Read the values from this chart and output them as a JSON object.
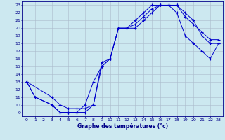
{
  "xlabel": "Graphe des températures (°c)",
  "background_color": "#cce8f0",
  "line_color": "#0000cc",
  "grid_color": "#aabbcc",
  "xlim": [
    -0.5,
    23.5
  ],
  "ylim": [
    8.5,
    23.5
  ],
  "xticks": [
    0,
    1,
    2,
    3,
    4,
    5,
    6,
    7,
    8,
    9,
    10,
    11,
    12,
    13,
    14,
    15,
    16,
    17,
    18,
    19,
    20,
    21,
    22,
    23
  ],
  "yticks": [
    9,
    10,
    11,
    12,
    13,
    14,
    15,
    16,
    17,
    18,
    19,
    20,
    21,
    22,
    23
  ],
  "line1_x": [
    0,
    1,
    3,
    4,
    5,
    6,
    7,
    8,
    9,
    10,
    11,
    12,
    13,
    14,
    15,
    16,
    17,
    18,
    19,
    20,
    21,
    22,
    23
  ],
  "line1_y": [
    13,
    11,
    10,
    9,
    9,
    9,
    9,
    10,
    15,
    16,
    20,
    20,
    21,
    22,
    23,
    23,
    23,
    23,
    22,
    21,
    19,
    18,
    18
  ],
  "line2_x": [
    0,
    1,
    3,
    4,
    5,
    6,
    7,
    8,
    9,
    10,
    11,
    12,
    13,
    14,
    15,
    16,
    17,
    18,
    19,
    20,
    21,
    22,
    23
  ],
  "line2_y": [
    13,
    11,
    10,
    9,
    9,
    9,
    10,
    13,
    15,
    16,
    20,
    20,
    20,
    21,
    22,
    23,
    23,
    22,
    19,
    18,
    17,
    16,
    18
  ],
  "line3_x": [
    0,
    3,
    4,
    5,
    6,
    7,
    8,
    9,
    10,
    11,
    12,
    13,
    14,
    15,
    16,
    17,
    18,
    19,
    20,
    21,
    22,
    23
  ],
  "line3_y": [
    13,
    11,
    10,
    9.5,
    9.5,
    9.5,
    10,
    15.5,
    16,
    20,
    20,
    20.5,
    21.5,
    22.5,
    23,
    23,
    23,
    21.5,
    20.5,
    19.5,
    18.5,
    18.5
  ]
}
